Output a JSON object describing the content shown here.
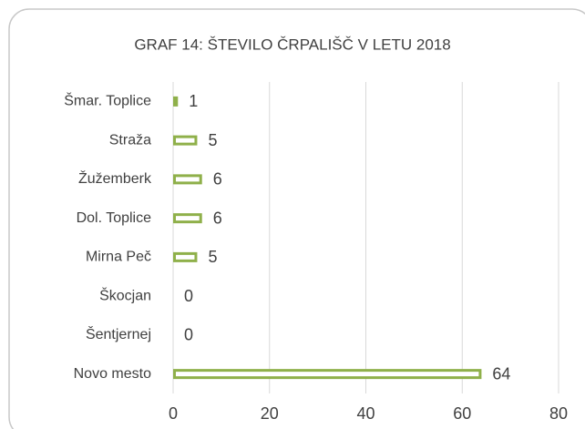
{
  "chart_data": {
    "type": "bar",
    "orientation": "horizontal",
    "title": "GRAF 14: ŠTEVILO ČRPALIŠČ V LETU 2018",
    "categories": [
      "Šmar. Toplice",
      "Straža",
      "Žužemberk",
      "Dol. Toplice",
      "Mirna Peč",
      "Škocjan",
      "Šentjernej",
      "Novo mesto"
    ],
    "values": [
      1,
      5,
      6,
      6,
      5,
      0,
      0,
      64
    ],
    "color": "#8fb04a",
    "xlim": [
      0,
      80
    ],
    "xticks": [
      0,
      20,
      40,
      60,
      80
    ],
    "grid": true
  }
}
